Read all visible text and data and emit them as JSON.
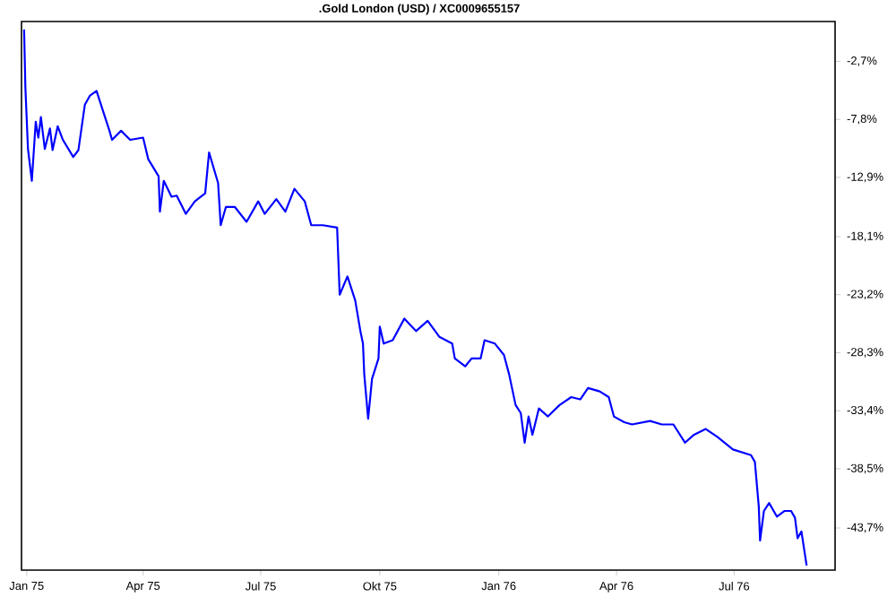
{
  "chart_data": {
    "type": "line",
    "title": ".Gold London (USD) / XC0009655157",
    "x": [
      "1974-12-30",
      "1974-12-31",
      "1975-01-02",
      "1975-01-05",
      "1975-01-08",
      "1975-01-10",
      "1975-01-12",
      "1975-01-15",
      "1975-01-19",
      "1975-01-21",
      "1975-01-25",
      "1975-01-29",
      "1975-02-06",
      "1975-02-10",
      "1975-02-15",
      "1975-02-19",
      "1975-02-24",
      "1975-03-02",
      "1975-03-06",
      "1975-03-08",
      "1975-03-15",
      "1975-03-22",
      "1975-04-01",
      "1975-04-05",
      "1975-04-13",
      "1975-04-14",
      "1975-04-17",
      "1975-04-23",
      "1975-04-27",
      "1975-05-04",
      "1975-05-11",
      "1975-05-19",
      "1975-05-22",
      "1975-05-29",
      "1975-05-31",
      "1975-06-04",
      "1975-06-11",
      "1975-06-20",
      "1975-06-29",
      "1975-07-04",
      "1975-07-13",
      "1975-07-20",
      "1975-07-27",
      "1975-08-04",
      "1975-08-09",
      "1975-08-18",
      "1975-08-29",
      "1975-08-31",
      "1975-09-06",
      "1975-09-12",
      "1975-09-16",
      "1975-09-18",
      "1975-09-19",
      "1975-09-22",
      "1975-09-25",
      "1975-09-30",
      "1975-10-01",
      "1975-10-04",
      "1975-10-11",
      "1975-10-20",
      "1975-10-29",
      "1975-11-07",
      "1975-11-16",
      "1975-11-26",
      "1975-11-28",
      "1975-12-06",
      "1975-12-11",
      "1975-12-18",
      "1975-12-21",
      "1975-12-29",
      "1976-01-05",
      "1976-01-09",
      "1976-01-14",
      "1976-01-18",
      "1976-01-21",
      "1976-01-24",
      "1976-01-27",
      "1976-02-01",
      "1976-02-08",
      "1976-02-17",
      "1976-02-26",
      "1976-03-04",
      "1976-03-10",
      "1976-03-19",
      "1976-03-26",
      "1976-03-30",
      "1976-04-07",
      "1976-04-13",
      "1976-04-27",
      "1976-05-06",
      "1976-05-15",
      "1976-05-24",
      "1976-05-31",
      "1976-06-09",
      "1976-06-18",
      "1976-06-30",
      "1976-07-14",
      "1976-07-17",
      "1976-07-20",
      "1976-07-21",
      "1976-07-24",
      "1976-07-28",
      "1976-08-03",
      "1976-08-09",
      "1976-08-14",
      "1976-08-17",
      "1976-08-19",
      "1976-08-22",
      "1976-08-26"
    ],
    "series": [
      {
        "color": "#0000ff",
        "values": [
          0.1,
          -5.0,
          -10.4,
          -13.2,
          -8.0,
          -9.4,
          -7.6,
          -10.4,
          -8.6,
          -10.5,
          -8.4,
          -9.6,
          -11.1,
          -10.5,
          -6.5,
          -5.7,
          -5.3,
          -7.4,
          -8.8,
          -9.6,
          -8.8,
          -9.6,
          -9.4,
          -11.3,
          -12.8,
          -15.9,
          -13.2,
          -14.6,
          -14.5,
          -16.1,
          -15.0,
          -14.3,
          -10.7,
          -13.4,
          -17.1,
          -15.5,
          -15.5,
          -16.8,
          -15.0,
          -16.1,
          -14.8,
          -15.9,
          -13.9,
          -15.0,
          -17.1,
          -17.1,
          -17.3,
          -23.2,
          -21.6,
          -23.7,
          -26.4,
          -27.5,
          -30.2,
          -34.1,
          -30.6,
          -28.8,
          -26.0,
          -27.5,
          -27.2,
          -25.3,
          -26.4,
          -25.5,
          -26.9,
          -27.5,
          -28.8,
          -29.5,
          -28.8,
          -28.8,
          -27.2,
          -27.5,
          -28.5,
          -30.2,
          -32.9,
          -33.6,
          -36.2,
          -33.9,
          -35.5,
          -33.2,
          -33.9,
          -32.9,
          -32.2,
          -32.4,
          -31.4,
          -31.7,
          -32.2,
          -33.9,
          -34.4,
          -34.6,
          -34.3,
          -34.6,
          -34.6,
          -36.2,
          -35.5,
          -35.0,
          -35.7,
          -36.8,
          -37.3,
          -37.9,
          -41.8,
          -44.8,
          -42.2,
          -41.5,
          -42.7,
          -42.2,
          -42.2,
          -42.8,
          -44.6,
          -44.0,
          -47.0
        ]
      }
    ],
    "xlim": [
      "1974-12-28",
      "1976-09-17"
    ],
    "xticks": [
      {
        "value": "1975-01-01",
        "label": "Jan 75"
      },
      {
        "value": "1975-04-01",
        "label": "Apr 75"
      },
      {
        "value": "1975-07-01",
        "label": "Jul 75"
      },
      {
        "value": "1975-10-01",
        "label": "Okt 75"
      },
      {
        "value": "1976-01-01",
        "label": "Jan 76"
      },
      {
        "value": "1976-04-01",
        "label": "Apr 76"
      },
      {
        "value": "1976-07-01",
        "label": "Jul 76"
      }
    ],
    "ylim": [
      -47.4,
      0.8
    ],
    "yticks": [
      {
        "value": -2.7,
        "label": "-2,7%"
      },
      {
        "value": -7.8,
        "label": "-7,8%"
      },
      {
        "value": -12.9,
        "label": "-12,9%"
      },
      {
        "value": -18.1,
        "label": "-18,1%"
      },
      {
        "value": -23.2,
        "label": "-23,2%"
      },
      {
        "value": -28.3,
        "label": "-28,3%"
      },
      {
        "value": -33.4,
        "label": "-33,4%"
      },
      {
        "value": -38.5,
        "label": "-38,5%"
      },
      {
        "value": -43.7,
        "label": "-43,7%"
      }
    ],
    "grid": false,
    "marker": "none",
    "line_style": "solid"
  }
}
